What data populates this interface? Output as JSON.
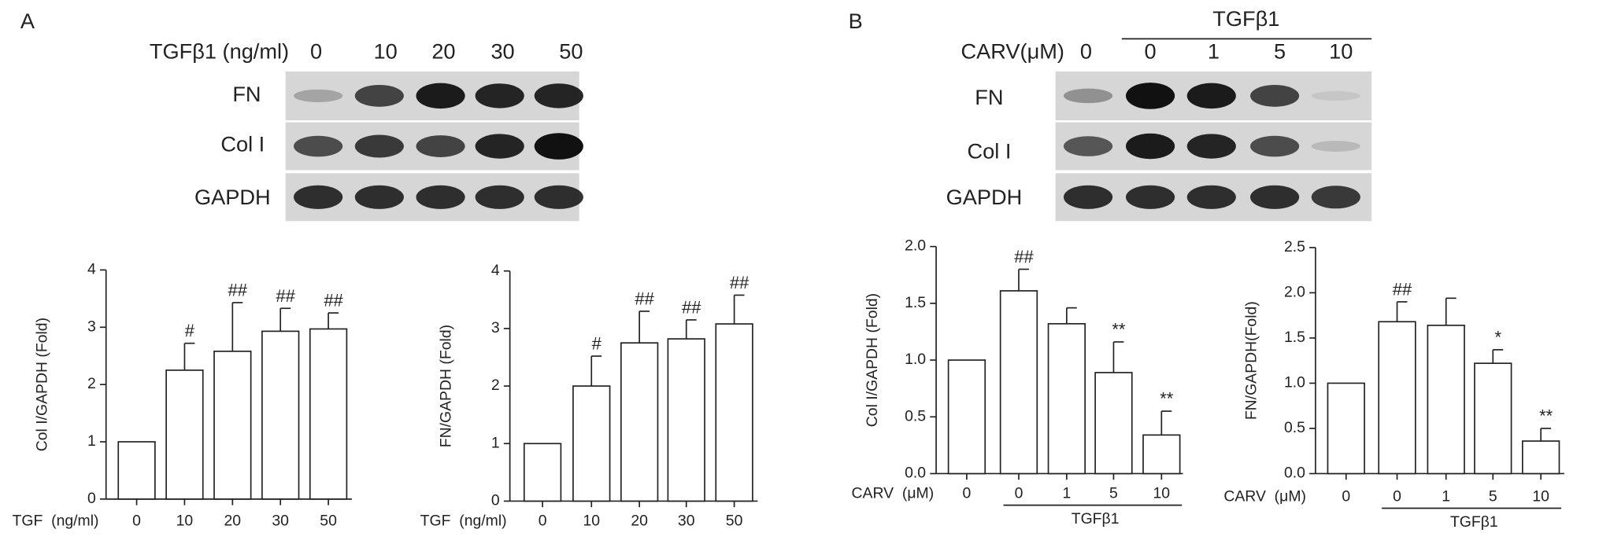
{
  "panels": [
    {
      "label": "A",
      "header": "TGFβ1 (ng/ml)",
      "lanes": [
        "0",
        "10",
        "20",
        "30",
        "50"
      ],
      "rows": [
        "FN",
        "Col I",
        "GAPDH"
      ]
    },
    {
      "label": "B",
      "group": "TGFβ1",
      "header": "CARV(μM)",
      "lanes": [
        "0",
        "0",
        "1",
        "5",
        "10"
      ],
      "rows": [
        "FN",
        "Col I",
        "GAPDH"
      ]
    }
  ],
  "chart_data": [
    {
      "type": "bar",
      "ylabel": "Col I/GAPDH (Fold)",
      "xlabel": "TGF  (ng/ml)",
      "categories": [
        "0",
        "10",
        "20",
        "30",
        "50"
      ],
      "values": [
        1,
        2.25,
        2.58,
        2.93,
        2.97
      ],
      "errors": [
        0,
        0.47,
        0.85,
        0.4,
        0.28
      ],
      "annotations": [
        null,
        "#",
        "##",
        "##",
        "##"
      ],
      "color": "#ffffff",
      "ylim": [
        0,
        4
      ],
      "yticks": [
        0,
        1,
        2,
        3,
        4
      ]
    },
    {
      "type": "bar",
      "ylabel": "FN/GAPDH (Fold)",
      "xlabel": "TGF  (ng/ml)",
      "categories": [
        "0",
        "10",
        "20",
        "30",
        "50"
      ],
      "values": [
        1,
        2.0,
        2.75,
        2.82,
        3.08
      ],
      "errors": [
        0,
        0.52,
        0.55,
        0.33,
        0.5
      ],
      "annotations": [
        null,
        "#",
        "##",
        "##",
        "##"
      ],
      "color": "#ffffff",
      "ylim": [
        0,
        4
      ],
      "yticks": [
        0,
        1,
        2,
        3,
        4
      ]
    },
    {
      "type": "bar",
      "ylabel": "Col I/GAPDH (Fold)",
      "xlabel": "CARV  (μM)",
      "group_label": "TGFβ1",
      "categories": [
        "0",
        "0",
        "1",
        "5",
        "10"
      ],
      "values": [
        1.0,
        1.61,
        1.32,
        0.89,
        0.34
      ],
      "errors": [
        0,
        0.19,
        0.14,
        0.27,
        0.21
      ],
      "annotations": [
        null,
        "##",
        null,
        "**",
        "**"
      ],
      "color": "#ffffff",
      "ylim": [
        0,
        2
      ],
      "yticks": [
        {
          "value": 0,
          "label": "0.0"
        },
        0.5,
        {
          "value": 1,
          "label": "1.0"
        },
        1.5,
        {
          "value": 2,
          "label": "2.0"
        }
      ]
    },
    {
      "type": "bar",
      "ylabel": "FN/GAPDH(Fold)",
      "xlabel": "CARV  (μM)",
      "group_label": "TGFβ1",
      "categories": [
        "0",
        "0",
        "1",
        "5",
        "10"
      ],
      "values": [
        1.0,
        1.68,
        1.64,
        1.22,
        0.36
      ],
      "errors": [
        0,
        0.22,
        0.3,
        0.15,
        0.14
      ],
      "annotations": [
        null,
        "##",
        null,
        "*",
        "**"
      ],
      "color": "#ffffff",
      "ylim": [
        0,
        2.5
      ],
      "yticks": [
        {
          "value": 0,
          "label": "0.0"
        },
        0.5,
        {
          "value": 1,
          "label": "1.0"
        },
        1.5,
        {
          "value": 2,
          "label": "2.0"
        },
        2.5
      ]
    }
  ]
}
